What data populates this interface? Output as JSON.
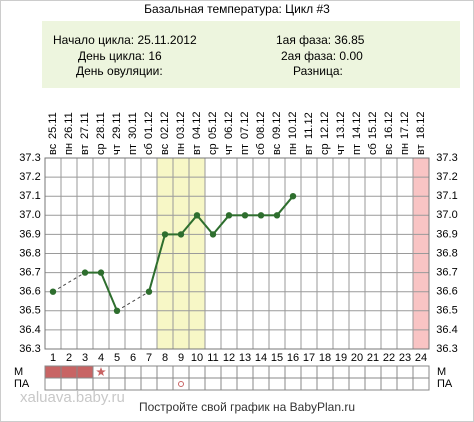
{
  "chart_data": {
    "type": "line",
    "title": "Базальная температура: Цикл #3",
    "info_left": [
      "Начало цикла: 25.11.2012",
      "День цикла: 16",
      "День овуляции:"
    ],
    "info_right": [
      "1ая фаза: 36.85",
      "2ая фаза: 0.00",
      "Разница:"
    ],
    "x": [
      1,
      2,
      3,
      4,
      5,
      6,
      7,
      8,
      9,
      10,
      11,
      12,
      13,
      14,
      15,
      16,
      17,
      18,
      19,
      20,
      21,
      22,
      23,
      24
    ],
    "dates": [
      "25.11",
      "26.11",
      "27.11",
      "28.11",
      "29.11",
      "30.11",
      "01.12",
      "02.12",
      "03.12",
      "04.12",
      "05.12",
      "06.12",
      "07.12",
      "08.12",
      "09.12",
      "10.12",
      "11.12",
      "12.12",
      "13.12",
      "14.12",
      "15.12",
      "16.12",
      "17.12",
      "18.12"
    ],
    "weekdays": [
      "вс",
      "пн",
      "вт",
      "ср",
      "чт",
      "пт",
      "сб",
      "вс",
      "пн",
      "вт",
      "ср",
      "чт",
      "пт",
      "сб",
      "вс",
      "пн",
      "вт",
      "ср",
      "чт",
      "пт",
      "сб",
      "вс",
      "пн",
      "вт"
    ],
    "series": [
      {
        "name": "Температура",
        "color": "#2e6e2e",
        "values": [
          36.6,
          null,
          36.7,
          36.7,
          36.5,
          null,
          36.6,
          36.9,
          36.9,
          37.0,
          36.9,
          37.0,
          37.0,
          37.0,
          37.0,
          37.1,
          null,
          null,
          null,
          null,
          null,
          null,
          null,
          null
        ]
      }
    ],
    "xlim": [
      0.5,
      24.5
    ],
    "ylim": [
      36.3,
      37.3
    ],
    "yticks": [
      36.3,
      36.4,
      36.5,
      36.6,
      36.7,
      36.8,
      36.9,
      {
        "value": 37,
        "label": "37.0"
      },
      37.1,
      37.2,
      37.3
    ],
    "grid": true,
    "highlights": [
      {
        "from": 8,
        "to": 10,
        "color": "#f7f7c6"
      },
      {
        "from": 24,
        "to": 24,
        "color": "#f9c4c4"
      }
    ],
    "m_row": {
      "label": "М",
      "filled": [
        1,
        2,
        3
      ],
      "fill_color": "#c86464",
      "star": 4,
      "star_color": "#c86464"
    },
    "pa_row": {
      "label": "ПА",
      "circle": 9,
      "circle_color": "#c86464"
    },
    "watermark": "xaluava.baby.ru",
    "footer": "Постройте свой график на BabyPlan.ru"
  }
}
